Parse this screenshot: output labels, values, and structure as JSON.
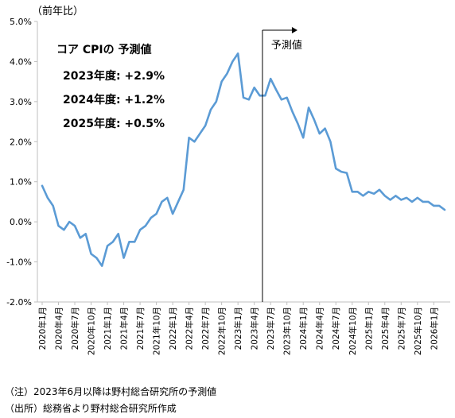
{
  "chart_data": {
    "type": "line",
    "y_unit_label": "（前年比）",
    "ylim": [
      -2.0,
      5.0
    ],
    "y_ticks": [
      "5.0%",
      "4.0%",
      "3.0%",
      "2.0%",
      "1.0%",
      "0.0%",
      "-1.0%",
      "-2.0%"
    ],
    "y_tick_values": [
      5,
      4,
      3,
      2,
      1,
      0,
      -1,
      -2
    ],
    "grid": false,
    "x_tick_labels": [
      "2020年1月",
      "2020年4月",
      "2020年7月",
      "2020年10月",
      "2021年1月",
      "2021年4月",
      "2021年7月",
      "2021年10月",
      "2022年1月",
      "2022年4月",
      "2022年7月",
      "2022年10月",
      "2023年1月",
      "2023年4月",
      "2023年7月",
      "2023年10月",
      "2024年1月",
      "2024年4月",
      "2024年7月",
      "2024年10月",
      "2025年1月",
      "2025年4月",
      "2025年7月",
      "2025年10月",
      "2026年1月"
    ],
    "series": [
      {
        "color": "#5b9bd5",
        "start": "2020年1月",
        "frequency": "monthly",
        "values": [
          0.9,
          0.6,
          0.4,
          -0.1,
          -0.2,
          0.0,
          -0.1,
          -0.4,
          -0.3,
          -0.8,
          -0.9,
          -1.1,
          -0.6,
          -0.5,
          -0.3,
          -0.9,
          -0.5,
          -0.5,
          -0.2,
          -0.1,
          0.1,
          0.2,
          0.5,
          0.6,
          0.2,
          0.5,
          0.8,
          2.1,
          2.0,
          2.2,
          2.4,
          2.8,
          3.0,
          3.5,
          3.7,
          4.0,
          4.2,
          3.1,
          3.05,
          3.35,
          3.15,
          3.15,
          3.57,
          3.3,
          3.05,
          3.1,
          2.75,
          2.45,
          2.1,
          2.85,
          2.55,
          2.2,
          2.33,
          2.0,
          1.33,
          1.25,
          1.22,
          0.75,
          0.75,
          0.65,
          0.75,
          0.7,
          0.8,
          0.65,
          0.55,
          0.65,
          0.55,
          0.6,
          0.5,
          0.6,
          0.5,
          0.5,
          0.4,
          0.4,
          0.3
        ]
      }
    ],
    "forecast": {
      "start": "2023年6月",
      "label": "予測値"
    },
    "annotation": {
      "title": "コア CPIの 予測値",
      "lines": [
        "2023年度: +2.9%",
        "2024年度: +1.2%",
        "2025年度: +0.5%"
      ]
    }
  },
  "notes": {
    "note1": "（注）2023年6月以降は野村総合研究所の予測値",
    "source": "（出所）総務省より野村総合研究所作成"
  }
}
